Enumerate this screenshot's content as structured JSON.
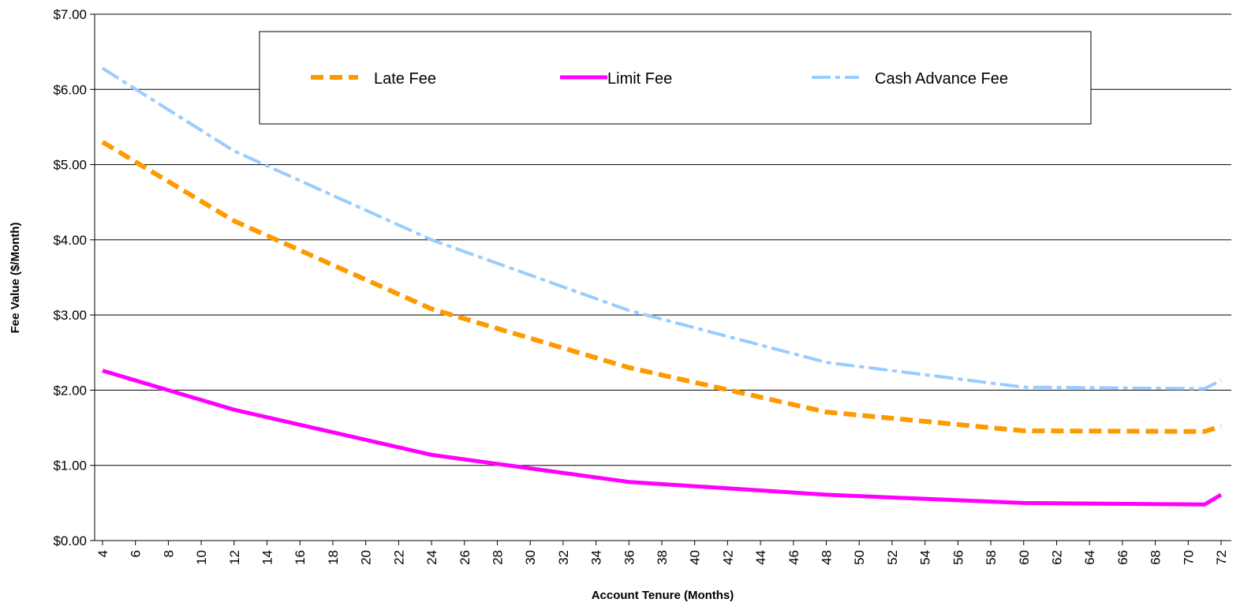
{
  "chart_data": {
    "type": "line",
    "xlabel": "Account Tenure (Months)",
    "ylabel": "Fee Value ($/Month)",
    "xlim": [
      4,
      72
    ],
    "ylim": [
      0,
      7
    ],
    "x_tick_labels": [
      "4",
      "6",
      "8",
      "10",
      "12",
      "14",
      "16",
      "18",
      "20",
      "22",
      "24",
      "26",
      "28",
      "30",
      "32",
      "34",
      "36",
      "38",
      "40",
      "42",
      "44",
      "46",
      "48",
      "50",
      "52",
      "54",
      "56",
      "58",
      "60",
      "62",
      "64",
      "66",
      "68",
      "70",
      "72"
    ],
    "y_tick_labels": [
      "$0.00",
      "$1.00",
      "$2.00",
      "$3.00",
      "$4.00",
      "$5.00",
      "$6.00",
      "$7.00"
    ],
    "grid": "horizontal",
    "legend_position": "top",
    "x": [
      4,
      12,
      24,
      36,
      48,
      60,
      71,
      72
    ],
    "series": [
      {
        "name": "Late Fee",
        "color": "#ff9900",
        "style": "dashed",
        "values": [
          5.3,
          4.25,
          3.08,
          2.3,
          1.71,
          1.46,
          1.45,
          1.52
        ]
      },
      {
        "name": "Limit Fee",
        "color": "#ff00ff",
        "style": "solid",
        "values": [
          2.26,
          1.74,
          1.14,
          0.78,
          0.61,
          0.5,
          0.48,
          0.61
        ]
      },
      {
        "name": "Cash Advance Fee",
        "color": "#99ccff",
        "style": "dashdot",
        "values": [
          6.28,
          5.18,
          4.0,
          3.06,
          2.37,
          2.04,
          2.02,
          2.13
        ]
      }
    ]
  }
}
